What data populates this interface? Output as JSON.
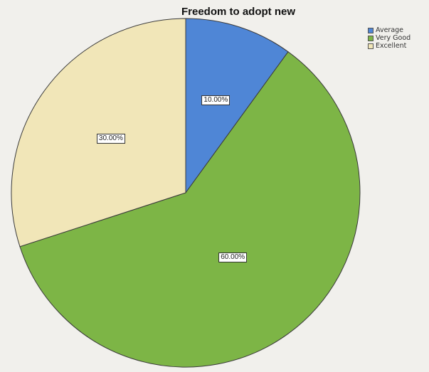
{
  "chart_data": {
    "type": "pie",
    "title": "Freedom to adopt new",
    "categories": [
      "Average",
      "Very Good",
      "Excellent"
    ],
    "values": [
      10,
      60,
      30
    ],
    "value_labels": [
      "10.00%",
      "60.00%",
      "30.00%"
    ],
    "colors": [
      "#4f86d6",
      "#7db546",
      "#f1e6b8"
    ],
    "start_angle_deg": 0,
    "direction": "clockwise",
    "legend_position": "top-right"
  }
}
